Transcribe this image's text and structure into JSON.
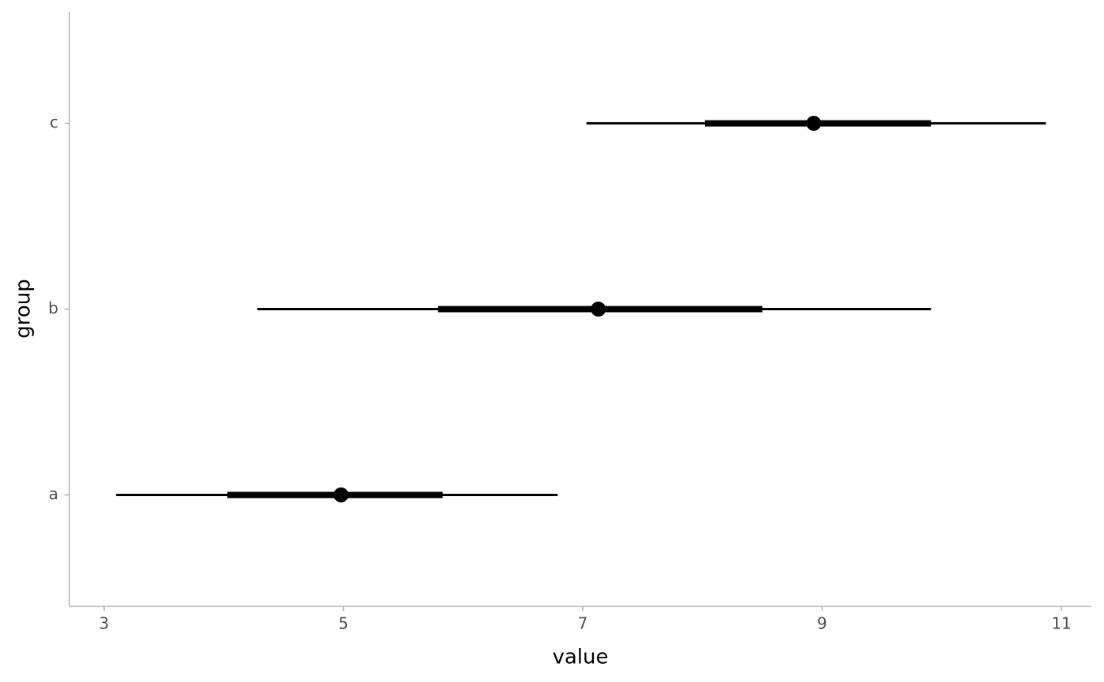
{
  "chart_data": {
    "type": "pointinterval",
    "x_label": "value",
    "y_label": "group",
    "categories": [
      "a",
      "b",
      "c"
    ],
    "values": [
      4.98,
      7.13,
      8.93
    ],
    "thick_lower": [
      4.03,
      5.79,
      8.02
    ],
    "thick_upper": [
      5.83,
      8.5,
      9.91
    ],
    "thin_lower": [
      3.1,
      4.28,
      7.03
    ],
    "thin_upper": [
      6.79,
      9.91,
      10.87
    ],
    "color": "#000000",
    "xlim": [
      2.71,
      11.25
    ],
    "xticks": [
      3,
      5,
      7,
      9,
      11
    ]
  }
}
